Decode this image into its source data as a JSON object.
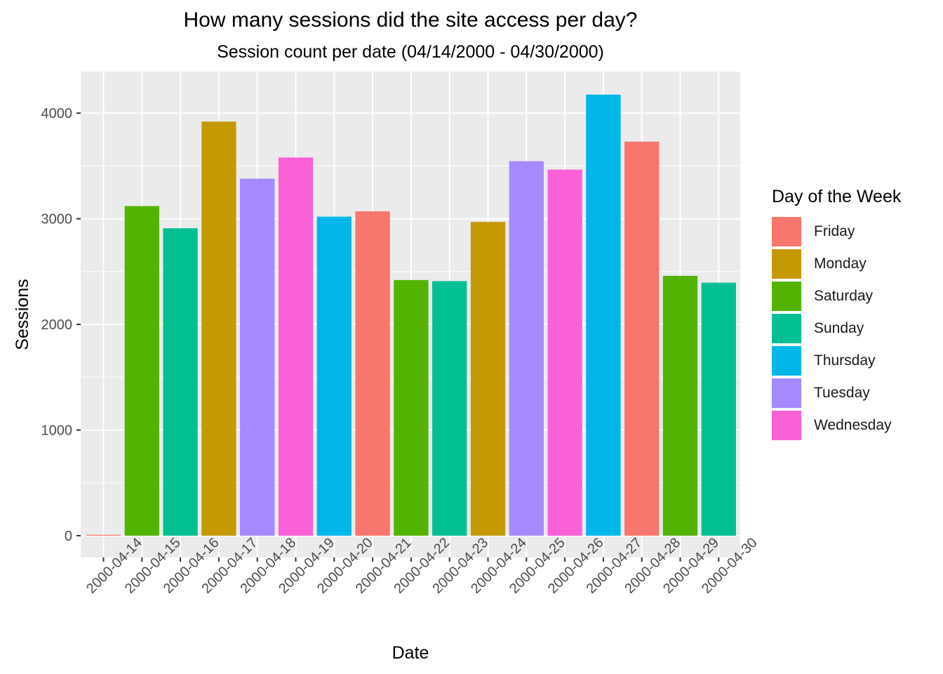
{
  "chart_data": {
    "type": "bar",
    "title": "How many sessions did the site access per day?",
    "subtitle": "Session count per date (04/14/2000 - 04/30/2000)",
    "xlabel": "Date",
    "ylabel": "Sessions",
    "ylim": [
      0,
      4400
    ],
    "yticks": [
      0,
      1000,
      2000,
      3000,
      4000
    ],
    "grid": true,
    "legend_position": "right",
    "legend_title": "Day of the Week",
    "categories": [
      "2000-04-14",
      "2000-04-15",
      "2000-04-16",
      "2000-04-17",
      "2000-04-18",
      "2000-04-19",
      "2000-04-20",
      "2000-04-21",
      "2000-04-22",
      "2000-04-23",
      "2000-04-24",
      "2000-04-25",
      "2000-04-26",
      "2000-04-27",
      "2000-04-28",
      "2000-04-29",
      "2000-04-30"
    ],
    "values": [
      8,
      3120,
      2910,
      3920,
      3380,
      3580,
      3020,
      3070,
      2420,
      2410,
      2970,
      3545,
      3465,
      4175,
      3730,
      2460,
      2395
    ],
    "day_of_week": [
      "Friday",
      "Saturday",
      "Sunday",
      "Monday",
      "Tuesday",
      "Wednesday",
      "Thursday",
      "Friday",
      "Saturday",
      "Sunday",
      "Monday",
      "Tuesday",
      "Wednesday",
      "Thursday",
      "Friday",
      "Saturday",
      "Sunday"
    ],
    "legend": [
      {
        "label": "Friday",
        "color": "#F8766D"
      },
      {
        "label": "Monday",
        "color": "#C49A00"
      },
      {
        "label": "Saturday",
        "color": "#53B400"
      },
      {
        "label": "Sunday",
        "color": "#00C094"
      },
      {
        "label": "Thursday",
        "color": "#00B6EB"
      },
      {
        "label": "Tuesday",
        "color": "#A58AFF"
      },
      {
        "label": "Wednesday",
        "color": "#FB61D7"
      }
    ]
  }
}
